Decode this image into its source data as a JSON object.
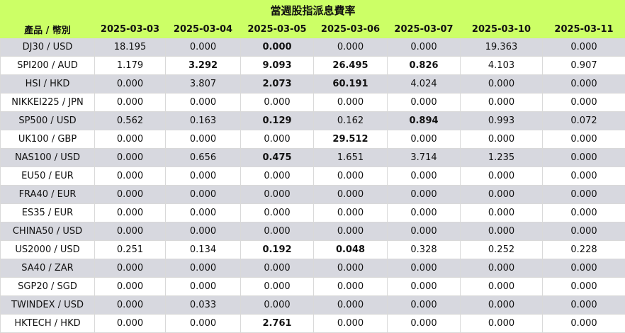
{
  "title": "當週股指派息費率",
  "columns": [
    "產品 / 幣別",
    "2025-03-03",
    "2025-03-04",
    "2025-03-05",
    "2025-03-06",
    "2025-03-07",
    "2025-03-10",
    "2025-03-11"
  ],
  "rows": [
    {
      "product": "DJ30 / USD",
      "values": [
        "18.195",
        "0.000",
        "0.000",
        "0.000",
        "0.000",
        "19.363",
        "0.000"
      ],
      "bold": [
        false,
        false,
        true,
        false,
        false,
        false,
        false
      ]
    },
    {
      "product": "SPI200 / AUD",
      "values": [
        "1.179",
        "3.292",
        "9.093",
        "26.495",
        "0.826",
        "4.103",
        "0.907"
      ],
      "bold": [
        false,
        true,
        true,
        true,
        true,
        false,
        false
      ]
    },
    {
      "product": "HSI / HKD",
      "values": [
        "0.000",
        "3.807",
        "2.073",
        "60.191",
        "4.024",
        "0.000",
        "0.000"
      ],
      "bold": [
        false,
        false,
        true,
        true,
        false,
        false,
        false
      ]
    },
    {
      "product": "NIKKEI225 / JPN",
      "values": [
        "0.000",
        "0.000",
        "0.000",
        "0.000",
        "0.000",
        "0.000",
        "0.000"
      ],
      "bold": [
        false,
        false,
        false,
        false,
        false,
        false,
        false
      ]
    },
    {
      "product": "SP500 / USD",
      "values": [
        "0.562",
        "0.163",
        "0.129",
        "0.162",
        "0.894",
        "0.993",
        "0.072"
      ],
      "bold": [
        false,
        false,
        true,
        false,
        true,
        false,
        false
      ]
    },
    {
      "product": "UK100 / GBP",
      "values": [
        "0.000",
        "0.000",
        "0.000",
        "29.512",
        "0.000",
        "0.000",
        "0.000"
      ],
      "bold": [
        false,
        false,
        false,
        true,
        false,
        false,
        false
      ]
    },
    {
      "product": "NAS100 / USD",
      "values": [
        "0.000",
        "0.656",
        "0.475",
        "1.651",
        "3.714",
        "1.235",
        "0.000"
      ],
      "bold": [
        false,
        false,
        true,
        false,
        false,
        false,
        false
      ]
    },
    {
      "product": "EU50 / EUR",
      "values": [
        "0.000",
        "0.000",
        "0.000",
        "0.000",
        "0.000",
        "0.000",
        "0.000"
      ],
      "bold": [
        false,
        false,
        false,
        false,
        false,
        false,
        false
      ]
    },
    {
      "product": "FRA40 / EUR",
      "values": [
        "0.000",
        "0.000",
        "0.000",
        "0.000",
        "0.000",
        "0.000",
        "0.000"
      ],
      "bold": [
        false,
        false,
        false,
        false,
        false,
        false,
        false
      ]
    },
    {
      "product": "ES35 / EUR",
      "values": [
        "0.000",
        "0.000",
        "0.000",
        "0.000",
        "0.000",
        "0.000",
        "0.000"
      ],
      "bold": [
        false,
        false,
        false,
        false,
        false,
        false,
        false
      ]
    },
    {
      "product": "CHINA50 / USD",
      "values": [
        "0.000",
        "0.000",
        "0.000",
        "0.000",
        "0.000",
        "0.000",
        "0.000"
      ],
      "bold": [
        false,
        false,
        false,
        false,
        false,
        false,
        false
      ]
    },
    {
      "product": "US2000 / USD",
      "values": [
        "0.251",
        "0.134",
        "0.192",
        "0.048",
        "0.328",
        "0.252",
        "0.228"
      ],
      "bold": [
        false,
        false,
        true,
        true,
        false,
        false,
        false
      ]
    },
    {
      "product": "SA40 / ZAR",
      "values": [
        "0.000",
        "0.000",
        "0.000",
        "0.000",
        "0.000",
        "0.000",
        "0.000"
      ],
      "bold": [
        false,
        false,
        false,
        false,
        false,
        false,
        false
      ]
    },
    {
      "product": "SGP20 / SGD",
      "values": [
        "0.000",
        "0.000",
        "0.000",
        "0.000",
        "0.000",
        "0.000",
        "0.000"
      ],
      "bold": [
        false,
        false,
        false,
        false,
        false,
        false,
        false
      ]
    },
    {
      "product": "TWINDEX / USD",
      "values": [
        "0.000",
        "0.033",
        "0.000",
        "0.000",
        "0.000",
        "0.000",
        "0.000"
      ],
      "bold": [
        false,
        false,
        false,
        false,
        false,
        false,
        false
      ]
    },
    {
      "product": "HKTECH / HKD",
      "values": [
        "0.000",
        "0.000",
        "2.761",
        "0.000",
        "0.000",
        "0.000",
        "0.000"
      ],
      "bold": [
        false,
        false,
        true,
        false,
        false,
        false,
        false
      ]
    }
  ]
}
